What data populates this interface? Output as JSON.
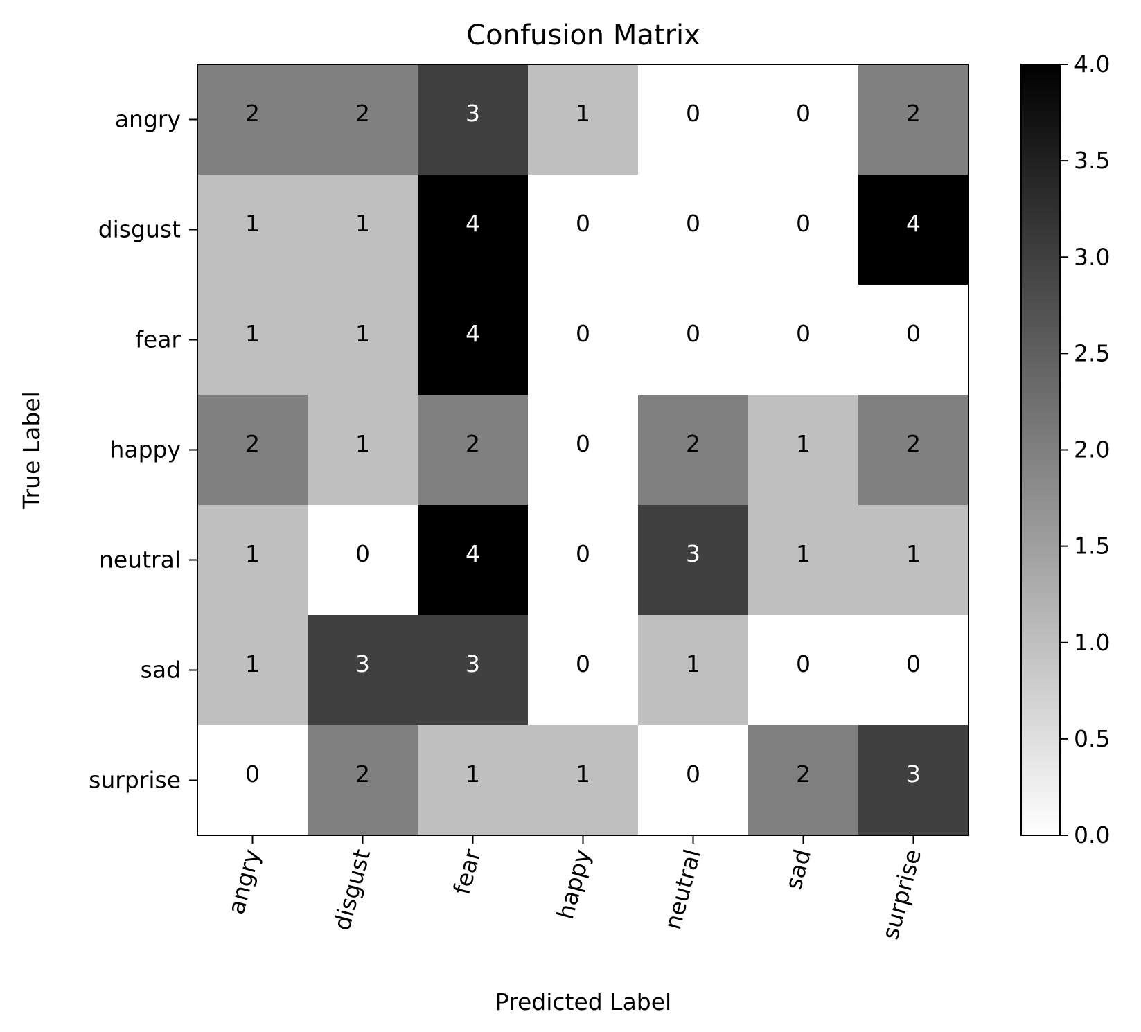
{
  "chart_data": {
    "type": "heatmap",
    "title": "Confusion Matrix",
    "xlabel": "Predicted Label",
    "ylabel": "True Label",
    "x_categories": [
      "angry",
      "disgust",
      "fear",
      "happy",
      "neutral",
      "sad",
      "surprise"
    ],
    "y_categories": [
      "angry",
      "disgust",
      "fear",
      "happy",
      "neutral",
      "sad",
      "surprise"
    ],
    "values": [
      [
        2,
        2,
        3,
        1,
        0,
        0,
        2
      ],
      [
        1,
        1,
        4,
        0,
        0,
        0,
        4
      ],
      [
        1,
        1,
        4,
        0,
        0,
        0,
        0
      ],
      [
        2,
        1,
        2,
        0,
        2,
        1,
        2
      ],
      [
        1,
        0,
        4,
        0,
        3,
        1,
        1
      ],
      [
        1,
        3,
        3,
        0,
        1,
        0,
        0
      ],
      [
        0,
        2,
        1,
        1,
        0,
        2,
        3
      ]
    ],
    "colormap": "greys",
    "color_range": [
      0,
      4
    ],
    "colorbar_ticks": [
      "0.0",
      "0.5",
      "1.0",
      "1.5",
      "2.0",
      "2.5",
      "3.0",
      "3.5",
      "4.0"
    ],
    "x_tick_rotation": "rotated",
    "grid": false
  }
}
